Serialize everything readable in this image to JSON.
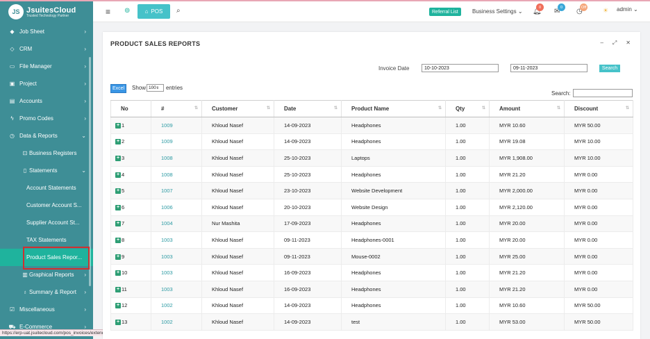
{
  "brand": {
    "logo_badge": "JS",
    "title": "JsuitesCloud",
    "subtitle": "Trusted Technology Partner"
  },
  "header": {
    "pos_label": "POS",
    "referral_label": "Referral List",
    "business_settings_label": "Business Settings",
    "notifications_count": "0",
    "messages_count": "0",
    "timer_badge": "Off",
    "user_label": "admin"
  },
  "sidebar": {
    "items": [
      {
        "label": "Job Sheet",
        "icon": "gem-icon"
      },
      {
        "label": "CRM",
        "icon": "diamond-icon"
      },
      {
        "label": "File Manager",
        "icon": "folder-icon"
      },
      {
        "label": "Project",
        "icon": "briefcase-icon"
      },
      {
        "label": "Accounts",
        "icon": "card-icon"
      },
      {
        "label": "Promo Codes",
        "icon": "tag-icon"
      },
      {
        "label": "Data & Reports",
        "icon": "clock-icon"
      },
      {
        "label": "Business Registers",
        "icon": "register-icon"
      },
      {
        "label": "Statements",
        "icon": "document-icon"
      },
      {
        "label": "Account Statements"
      },
      {
        "label": "Customer Account S..."
      },
      {
        "label": "Supplier Account St..."
      },
      {
        "label": "TAX Statements"
      },
      {
        "label": "Product Sales Repor..."
      },
      {
        "label": "Graphical Reports",
        "icon": "chart-icon"
      },
      {
        "label": "Summary & Report",
        "icon": "bulb-icon"
      },
      {
        "label": "Miscellaneous",
        "icon": "tasks-icon"
      },
      {
        "label": "E-Commerce",
        "icon": "cart-icon"
      }
    ]
  },
  "status_url": "https://erp-uat.jsuitecloud.com/pos_invoices/extended",
  "panel": {
    "title": "PRODUCT SALES REPORTS",
    "invoice_date_label": "Invoice Date",
    "date_from": "10-10-2023",
    "date_to": "09-11-2023",
    "search_button": "Search",
    "excel_button": "Excel",
    "show_label": "Show",
    "page_size": "100",
    "entries_label": "entries",
    "search_label": "Search:"
  },
  "table": {
    "columns": [
      "No",
      "#",
      "Customer",
      "Date",
      "Product Name",
      "Qty",
      "Amount",
      "Discount"
    ],
    "rows": [
      {
        "no": "1",
        "inv": "1009",
        "customer": "Khloud Nasef",
        "date": "14-09-2023",
        "product": "Headphones",
        "qty": "1.00",
        "amount": "MYR 10.60",
        "discount": "MYR 50.00"
      },
      {
        "no": "2",
        "inv": "1009",
        "customer": "Khloud Nasef",
        "date": "14-09-2023",
        "product": "Headphones",
        "qty": "1.00",
        "amount": "MYR 19.08",
        "discount": "MYR 10.00"
      },
      {
        "no": "3",
        "inv": "1008",
        "customer": "Khloud Nasef",
        "date": "25-10-2023",
        "product": "Laptops",
        "qty": "1.00",
        "amount": "MYR 1,908.00",
        "discount": "MYR 10.00"
      },
      {
        "no": "4",
        "inv": "1008",
        "customer": "Khloud Nasef",
        "date": "25-10-2023",
        "product": "Headphones",
        "qty": "1.00",
        "amount": "MYR 21.20",
        "discount": "MYR 0.00"
      },
      {
        "no": "5",
        "inv": "1007",
        "customer": "Khloud Nasef",
        "date": "23-10-2023",
        "product": "Website Development",
        "qty": "1.00",
        "amount": "MYR 2,000.00",
        "discount": "MYR 0.00"
      },
      {
        "no": "6",
        "inv": "1006",
        "customer": "Khloud Nasef",
        "date": "20-10-2023",
        "product": "Website Design",
        "qty": "1.00",
        "amount": "MYR 2,120.00",
        "discount": "MYR 0.00"
      },
      {
        "no": "7",
        "inv": "1004",
        "customer": "Nur Mashita",
        "date": "17-09-2023",
        "product": "Headphones",
        "qty": "1.00",
        "amount": "MYR 20.00",
        "discount": "MYR 0.00"
      },
      {
        "no": "8",
        "inv": "1003",
        "customer": "Khloud Nasef",
        "date": "09-11-2023",
        "product": "Headphones-0001",
        "qty": "1.00",
        "amount": "MYR 20.00",
        "discount": "MYR 0.00"
      },
      {
        "no": "9",
        "inv": "1003",
        "customer": "Khloud Nasef",
        "date": "09-11-2023",
        "product": "Mouse-0002",
        "qty": "1.00",
        "amount": "MYR 25.00",
        "discount": "MYR 0.00"
      },
      {
        "no": "10",
        "inv": "1003",
        "customer": "Khloud Nasef",
        "date": "16-09-2023",
        "product": "Headphones",
        "qty": "1.00",
        "amount": "MYR 21.20",
        "discount": "MYR 0.00"
      },
      {
        "no": "11",
        "inv": "1003",
        "customer": "Khloud Nasef",
        "date": "16-09-2023",
        "product": "Headphones",
        "qty": "1.00",
        "amount": "MYR 21.20",
        "discount": "MYR 0.00"
      },
      {
        "no": "12",
        "inv": "1002",
        "customer": "Khloud Nasef",
        "date": "14-09-2023",
        "product": "Headphones",
        "qty": "1.00",
        "amount": "MYR 10.60",
        "discount": "MYR 50.00"
      },
      {
        "no": "13",
        "inv": "1002",
        "customer": "Khloud Nasef",
        "date": "14-09-2023",
        "product": "test",
        "qty": "1.00",
        "amount": "MYR 53.00",
        "discount": "MYR 50.00"
      }
    ]
  },
  "colors": {
    "sidebar": "#3e8e96",
    "active": "#1fb39d",
    "accent": "#46c2c9",
    "excel": "#3a96e5"
  }
}
